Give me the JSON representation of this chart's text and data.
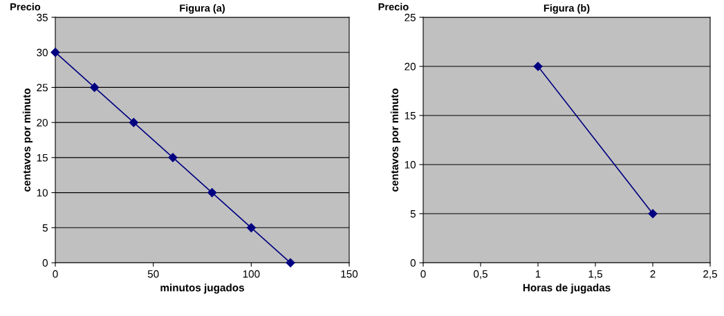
{
  "chart_data": [
    {
      "type": "line",
      "title": "Figura (a)",
      "xlabel": "minutos jugados",
      "ylabel": "centavos por minuto",
      "annotations": [
        "Precio"
      ],
      "x": [
        0,
        20,
        40,
        60,
        80,
        100,
        120
      ],
      "series": [
        {
          "color": "#000080",
          "values": [
            30,
            25,
            20,
            15,
            10,
            5,
            0
          ]
        }
      ],
      "xlim": [
        0,
        150
      ],
      "xticks": [
        0,
        50,
        100,
        150
      ],
      "ylim": [
        0,
        35
      ],
      "yticks": [
        0,
        5,
        10,
        15,
        20,
        25,
        30,
        35
      ],
      "grid": "y",
      "marker": "diamond",
      "line_style": "solid"
    },
    {
      "type": "line",
      "title": "Figura (b)",
      "xlabel": "Horas de jugadas",
      "ylabel": "centavos por minuto",
      "annotations": [
        "Precio"
      ],
      "x": [
        1,
        2
      ],
      "series": [
        {
          "color": "#000080",
          "values": [
            20,
            5
          ]
        }
      ],
      "xlim": [
        0,
        2.5
      ],
      "xticks": [
        0,
        {
          "value": 0.5,
          "label": "0,5"
        },
        1,
        {
          "value": 1.5,
          "label": "1,5"
        },
        2,
        {
          "value": 2.5,
          "label": "2,5"
        }
      ],
      "ylim": [
        0,
        25
      ],
      "yticks": [
        0,
        5,
        10,
        15,
        20,
        25
      ],
      "grid": "y",
      "marker": "diamond",
      "line_style": "solid"
    }
  ]
}
